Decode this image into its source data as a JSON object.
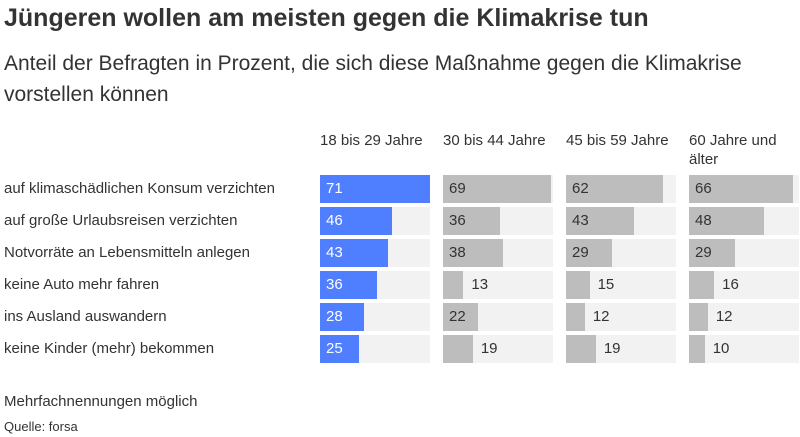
{
  "title": "Jüngeren wollen am meisten gegen die Klimakrise tun",
  "subtitle": "Anteil der Befragten in Prozent, die sich diese Maßnahme gegen die Klimakrise vorstellen können",
  "note": "Mehrfachnennungen möglich",
  "source": "Quelle: forsa",
  "colors": {
    "highlight": "#4f7fff",
    "bar": "#bdbdbd",
    "track": "#f2f2f2",
    "text": "#333333"
  },
  "chart_data": {
    "type": "bar",
    "orientation": "horizontal",
    "layout": "small-multiples",
    "categories": [
      "auf klimaschädlichen Konsum verzichten",
      "auf große Urlaubsreisen verzichten",
      "Notvorräte an Lebensmitteln anlegen",
      "keine Auto mehr fahren",
      "ins Ausland auswandern",
      "keine Kinder (mehr) bekommen"
    ],
    "series": [
      {
        "name": "18 bis 29 Jahre",
        "values": [
          71,
          46,
          43,
          36,
          28,
          25
        ]
      },
      {
        "name": "30 bis 44 Jahre",
        "values": [
          69,
          36,
          38,
          13,
          22,
          19
        ]
      },
      {
        "name": "45 bis 59 Jahre",
        "values": [
          62,
          43,
          29,
          15,
          12,
          19
        ]
      },
      {
        "name": "60 Jahre und älter",
        "values": [
          66,
          48,
          29,
          16,
          12,
          10
        ]
      }
    ],
    "xlim": [
      0,
      70
    ],
    "highlighted_series": 0,
    "grid": false
  }
}
